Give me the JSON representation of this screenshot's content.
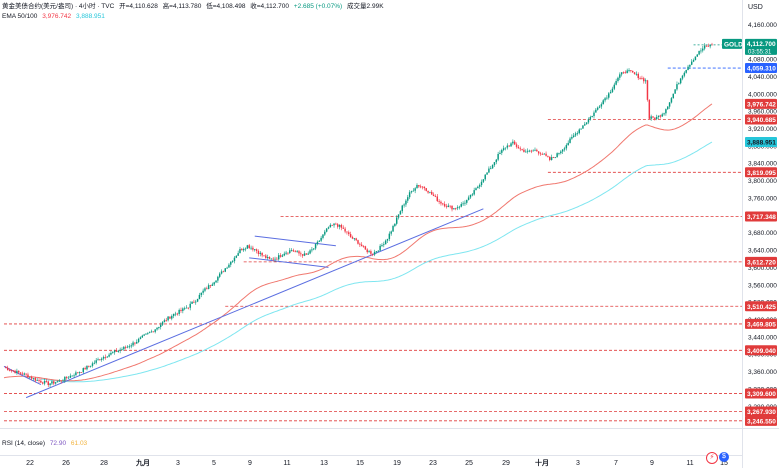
{
  "legend": {
    "symbol": "黄金美债合约(美元/盎司) · 4小时 · TVC",
    "open": "开=4,110.628",
    "high": "高=4,113.780",
    "low": "低=4,108.498",
    "close": "收=4,112.700",
    "change": "+2.685 (+0.07%)",
    "volume": "成交量2.99K",
    "ema_label": "EMA 50/100",
    "ema50_value": "3,976.742",
    "ema100_value": "3,888.951",
    "rsi_label": "RSI (14, close)",
    "rsi_value": "72.90",
    "rsi_ma_value": "61.03"
  },
  "currency_label": "USD",
  "colors": {
    "up": "#089981",
    "down": "#f23645",
    "ema50": "#f0786f",
    "ema100": "#7fe6f0",
    "trendline": "#5b6ee1",
    "level": "#e03b3b",
    "blue_label": "#2962ff",
    "teal_label": "#26c6da",
    "price_label": "#089981"
  },
  "icons": [
    "lightning-icon",
    "currency-icon"
  ],
  "chart_data": {
    "type": "candlestick",
    "symbol_badge": "GOLD",
    "last_price": "4,112.700",
    "countdown": "03:55:31",
    "ylim": [
      3230,
      4170
    ],
    "y_ticks": [
      "4,160.000",
      "4,120.000",
      "4,080.000",
      "4,040.000",
      "4,000.000",
      "3,960.000",
      "3,920.000",
      "3,880.000",
      "3,840.000",
      "3,800.000",
      "3,760.000",
      "3,720.000",
      "3,680.000",
      "3,640.000",
      "3,600.000",
      "3,560.000",
      "3,520.000",
      "3,480.000",
      "3,440.000",
      "3,400.000",
      "3,360.000",
      "3,320.000",
      "3,280.000"
    ],
    "x_labels": [
      "22",
      "26",
      "28",
      "九月",
      "3",
      "5",
      "9",
      "11",
      "13",
      "15",
      "19",
      "23",
      "25",
      "29",
      "十月",
      "3",
      "7",
      "9",
      "11",
      "15"
    ],
    "levels": [
      {
        "value": 4059.31,
        "label": "4,059.310",
        "style": "blue"
      },
      {
        "value": 3940.685,
        "label": "3,940.685",
        "style": "red"
      },
      {
        "value": 3819.095,
        "label": "3,819.095",
        "style": "red"
      },
      {
        "value": 3717.348,
        "label": "3,717.348",
        "style": "red"
      },
      {
        "value": 3612.72,
        "label": "3,612.720",
        "style": "red"
      },
      {
        "value": 3510.425,
        "label": "3,510.425",
        "style": "red"
      },
      {
        "value": 3469.805,
        "label": "3,469.805",
        "style": "red"
      },
      {
        "value": 3409.04,
        "label": "3,409.040",
        "style": "red"
      },
      {
        "value": 3309.6,
        "label": "3,309.600",
        "style": "red"
      },
      {
        "value": 3267.93,
        "label": "3,267.930",
        "style": "red"
      },
      {
        "value": 3246.55,
        "label": "3,246.550",
        "style": "red"
      }
    ],
    "series": [
      {
        "name": "EMA 50",
        "value_label": "3,976.742",
        "last": 3976.742
      },
      {
        "name": "EMA 100",
        "value_label": "3,888.951",
        "last": 3888.951
      }
    ],
    "price_path": [
      [
        0,
        3370
      ],
      [
        6,
        3360
      ],
      [
        12,
        3352
      ],
      [
        18,
        3340
      ],
      [
        24,
        3332
      ],
      [
        30,
        3338
      ],
      [
        36,
        3350
      ],
      [
        42,
        3362
      ],
      [
        48,
        3378
      ],
      [
        52,
        3390
      ],
      [
        56,
        3398
      ],
      [
        60,
        3405
      ],
      [
        64,
        3412
      ],
      [
        68,
        3420
      ],
      [
        72,
        3430
      ],
      [
        76,
        3442
      ],
      [
        80,
        3452
      ],
      [
        84,
        3465
      ],
      [
        88,
        3480
      ],
      [
        92,
        3492
      ],
      [
        96,
        3500
      ],
      [
        100,
        3510
      ],
      [
        104,
        3525
      ],
      [
        108,
        3545
      ],
      [
        112,
        3560
      ],
      [
        116,
        3578
      ],
      [
        120,
        3598
      ],
      [
        124,
        3618
      ],
      [
        128,
        3640
      ],
      [
        132,
        3650
      ],
      [
        136,
        3642
      ],
      [
        140,
        3628
      ],
      [
        144,
        3618
      ],
      [
        148,
        3622
      ],
      [
        152,
        3634
      ],
      [
        156,
        3640
      ],
      [
        160,
        3632
      ],
      [
        164,
        3628
      ],
      [
        168,
        3644
      ],
      [
        172,
        3668
      ],
      [
        176,
        3692
      ],
      [
        180,
        3700
      ],
      [
        184,
        3688
      ],
      [
        188,
        3670
      ],
      [
        192,
        3658
      ],
      [
        196,
        3640
      ],
      [
        200,
        3632
      ],
      [
        204,
        3646
      ],
      [
        208,
        3668
      ],
      [
        212,
        3702
      ],
      [
        216,
        3740
      ],
      [
        220,
        3770
      ],
      [
        224,
        3790
      ],
      [
        228,
        3784
      ],
      [
        232,
        3768
      ],
      [
        236,
        3752
      ],
      [
        240,
        3742
      ],
      [
        244,
        3736
      ],
      [
        248,
        3744
      ],
      [
        252,
        3758
      ],
      [
        256,
        3780
      ],
      [
        260,
        3806
      ],
      [
        264,
        3830
      ],
      [
        268,
        3858
      ],
      [
        272,
        3878
      ],
      [
        276,
        3886
      ],
      [
        280,
        3872
      ],
      [
        284,
        3866
      ],
      [
        288,
        3870
      ],
      [
        292,
        3862
      ],
      [
        296,
        3848
      ],
      [
        300,
        3860
      ],
      [
        304,
        3878
      ],
      [
        308,
        3898
      ],
      [
        312,
        3918
      ],
      [
        316,
        3936
      ],
      [
        320,
        3956
      ],
      [
        324,
        3980
      ],
      [
        328,
        4000
      ],
      [
        332,
        4030
      ],
      [
        336,
        4052
      ],
      [
        340,
        4050
      ],
      [
        344,
        4040
      ],
      [
        348,
        4030
      ],
      [
        350,
        3944
      ],
      [
        354,
        3945
      ],
      [
        358,
        3958
      ],
      [
        362,
        3990
      ],
      [
        364,
        4010
      ],
      [
        368,
        4045
      ],
      [
        372,
        4070
      ],
      [
        376,
        4092
      ],
      [
        380,
        4108
      ],
      [
        384,
        4112.7
      ]
    ]
  }
}
